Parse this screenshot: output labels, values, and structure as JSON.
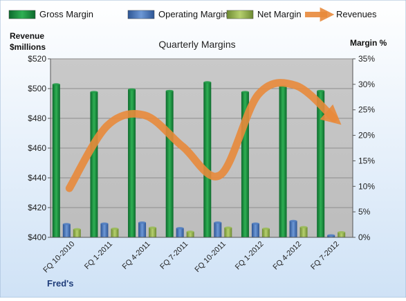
{
  "chart_data": {
    "type": "bar",
    "title": "Quarterly Margins",
    "footer_label": "Fred's",
    "left_axis": {
      "label_lines": [
        "Revenue",
        "$millions"
      ],
      "min": 400,
      "max": 520,
      "ticks": [
        "$400",
        "$420",
        "$440",
        "$460",
        "$480",
        "$500",
        "$520"
      ]
    },
    "right_axis": {
      "label": "Margin %",
      "min": 0,
      "max": 35,
      "ticks": [
        "0%",
        "5%",
        "10%",
        "15%",
        "20%",
        "25%",
        "30%",
        "35%"
      ]
    },
    "categories": [
      "FQ 10-2010",
      "FQ 1-2011",
      "FQ 4-2011",
      "FQ 7-2011",
      "FQ 10-2011",
      "FQ 1-2012",
      "FQ 4-2012",
      "FQ 7-2012"
    ],
    "legend": [
      {
        "key": "gross",
        "label": "Gross Margin"
      },
      {
        "key": "operating",
        "label": "Operating Margin"
      },
      {
        "key": "net",
        "label": "Net Margin"
      },
      {
        "key": "revenue",
        "label": "Revenues"
      }
    ],
    "series": [
      {
        "key": "gross",
        "name": "Gross Margin",
        "axis": "right",
        "kind": "bar",
        "values": [
          30.0,
          28.5,
          29.0,
          28.7,
          30.4,
          28.5,
          29.6,
          28.7
        ]
      },
      {
        "key": "operating",
        "name": "Operating Margin",
        "axis": "right",
        "kind": "bar",
        "values": [
          2.6,
          2.7,
          2.9,
          1.8,
          2.9,
          2.7,
          3.2,
          0.4
        ]
      },
      {
        "key": "net",
        "name": "Net Margin",
        "axis": "right",
        "kind": "bar",
        "values": [
          1.6,
          1.7,
          1.9,
          1.1,
          1.9,
          1.7,
          2.0,
          1.0
        ]
      },
      {
        "key": "revenue",
        "name": "Revenues",
        "axis": "left",
        "kind": "line",
        "values": [
          433,
          475,
          482,
          461,
          442,
          496,
          502,
          480
        ]
      }
    ],
    "colors": {
      "gross": "#1e9a44",
      "operating": "#4f7dc1",
      "net": "#99bb55",
      "revenue": "#e88a3b",
      "plot_bg": "#c0c0c0",
      "page_bg": "#dbe9f7"
    },
    "grid": true,
    "legend_position": "top"
  }
}
